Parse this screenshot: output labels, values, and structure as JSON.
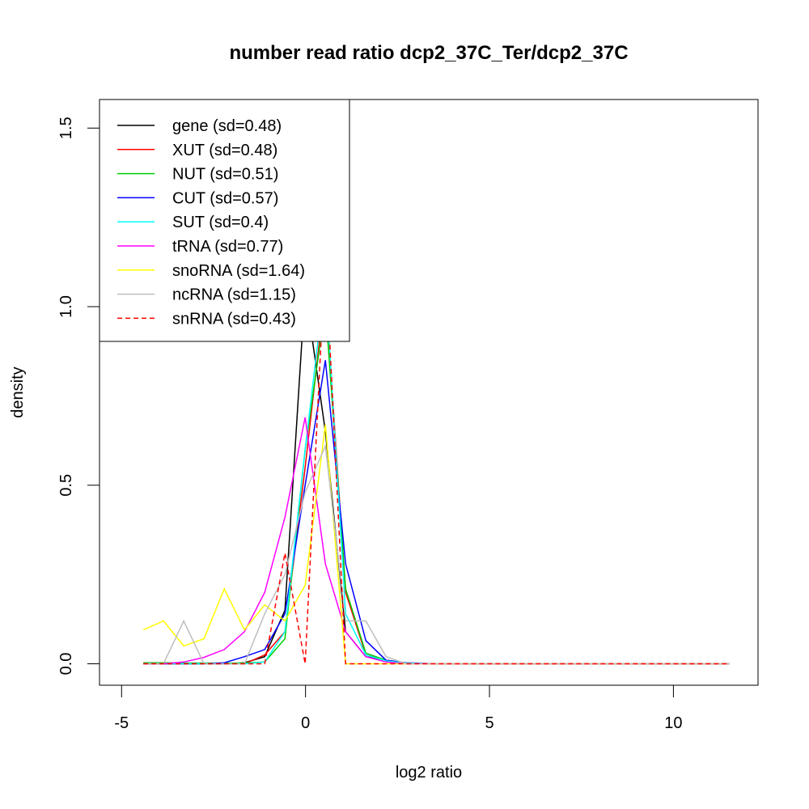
{
  "chart_data": {
    "type": "line",
    "title": "number read ratio dcp2_37C_Ter/dcp2_37C",
    "xlabel": "log2 ratio",
    "ylabel": "density",
    "xlim": [
      -5.6,
      12.3
    ],
    "ylim": [
      -0.06,
      1.58
    ],
    "xticks": [
      -5,
      0,
      5,
      10
    ],
    "xtick_labels": [
      "-5",
      "0",
      "5",
      "10"
    ],
    "yticks": [
      0,
      0.5,
      1,
      1.5
    ],
    "ytick_labels": [
      "0.0",
      "0.5",
      "1.0",
      "1.5"
    ],
    "legend_position": "top-left",
    "x": [
      -4.41,
      -3.86,
      -3.31,
      -2.76,
      -2.21,
      -1.66,
      -1.11,
      -0.56,
      -0.01,
      0.54,
      1.09,
      1.64,
      2.19,
      2.74,
      3.29,
      3.84,
      4.38,
      4.93,
      5.48,
      6.03,
      6.58,
      7.13,
      7.68,
      8.23,
      8.78,
      9.33,
      9.88,
      10.43,
      10.98,
      11.53
    ],
    "series": [
      {
        "name": "gene (sd=0.48)",
        "color": "#000000",
        "dash": false,
        "values": [
          0,
          0,
          0,
          0,
          0,
          0.003,
          0.02,
          0.15,
          1.05,
          0.65,
          0.09,
          0.02,
          0.01,
          0.002,
          0,
          0,
          0,
          0,
          0,
          0,
          0,
          0,
          0,
          0,
          0,
          0,
          0,
          0,
          0,
          0
        ]
      },
      {
        "name": "XUT (sd=0.48)",
        "color": "#ff0000",
        "dash": false,
        "values": [
          0,
          0,
          0,
          0,
          0,
          0,
          0.025,
          0.09,
          0.55,
          1.05,
          0.2,
          0.025,
          0.01,
          0.002,
          0,
          0,
          0,
          0,
          0,
          0,
          0,
          0,
          0,
          0,
          0,
          0,
          0,
          0,
          0,
          0
        ]
      },
      {
        "name": "NUT (sd=0.51)",
        "color": "#00cd00",
        "dash": false,
        "values": [
          0.003,
          0.003,
          0.002,
          0.002,
          0.002,
          0.002,
          0.005,
          0.07,
          0.6,
          1.0,
          0.21,
          0.03,
          0.01,
          0.002,
          0,
          0,
          0,
          0,
          0,
          0,
          0,
          0,
          0,
          0,
          0,
          0,
          0,
          0,
          0,
          0
        ]
      },
      {
        "name": "CUT (sd=0.57)",
        "color": "#0000ff",
        "dash": false,
        "values": [
          0,
          0,
          0,
          0,
          0.003,
          0.02,
          0.04,
          0.14,
          0.5,
          0.85,
          0.28,
          0.065,
          0.01,
          0.003,
          0.001,
          0,
          0,
          0,
          0,
          0,
          0,
          0,
          0,
          0,
          0,
          0,
          0,
          0,
          0,
          0
        ]
      },
      {
        "name": "SUT (sd=0.4)",
        "color": "#00ffff",
        "dash": false,
        "values": [
          0,
          0,
          0,
          0,
          0,
          0,
          0.005,
          0.09,
          0.6,
          1.08,
          0.14,
          0.025,
          0.008,
          0.002,
          0,
          0,
          0,
          0,
          0,
          0,
          0,
          0,
          0,
          0,
          0,
          0,
          0,
          0,
          0,
          0
        ]
      },
      {
        "name": "tRNA (sd=0.77)",
        "color": "#ff00ff",
        "dash": false,
        "values": [
          0,
          0,
          0.005,
          0.018,
          0.04,
          0.09,
          0.2,
          0.41,
          0.69,
          0.28,
          0.09,
          0.02,
          0.005,
          0,
          0,
          0,
          0,
          0,
          0,
          0,
          0,
          0,
          0,
          0,
          0,
          0,
          0,
          0,
          0,
          0
        ]
      },
      {
        "name": "snoRNA (sd=1.64)",
        "color": "#ffff00",
        "dash": false,
        "values": [
          0.095,
          0.12,
          0.05,
          0.07,
          0.21,
          0.095,
          0.165,
          0.12,
          0.22,
          0.67,
          0,
          0,
          0,
          0,
          0,
          0,
          0,
          0,
          0,
          0,
          0,
          0,
          0,
          0,
          0,
          0,
          0,
          0,
          0,
          0
        ]
      },
      {
        "name": "ncRNA (sd=1.15)",
        "color": "#bebebe",
        "dash": false,
        "values": [
          0,
          0,
          0.12,
          0,
          0,
          0,
          0.14,
          0.25,
          0.48,
          0.61,
          0.12,
          0.12,
          0.02,
          0,
          0,
          0,
          0,
          0,
          0,
          0,
          0,
          0,
          0,
          0,
          0,
          0,
          0,
          0,
          0,
          0
        ]
      },
      {
        "name": "snRNA (sd=0.43)",
        "color": "#ff0000",
        "dash": true,
        "values": [
          0,
          0,
          0,
          0,
          0,
          0,
          0,
          0.31,
          0,
          1.15,
          0,
          0,
          0,
          0,
          0,
          0,
          0,
          0,
          0,
          0,
          0,
          0,
          0,
          0,
          0,
          0,
          0,
          0,
          0,
          0
        ]
      }
    ]
  }
}
